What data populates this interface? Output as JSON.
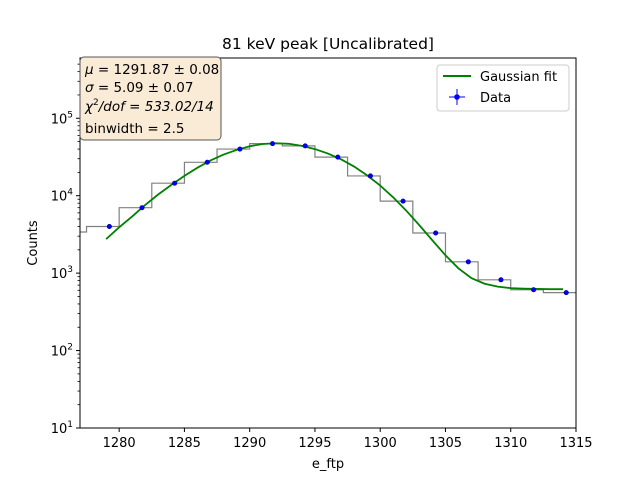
{
  "chart_data": {
    "type": "scatter",
    "title": "81 keV peak [Uncalibrated]",
    "xlabel": "e_ftp",
    "ylabel": "Counts",
    "xlim": [
      1277,
      1315
    ],
    "ylim": [
      10,
      600000
    ],
    "yscale": "log",
    "grid": false,
    "legend_position": "top-right",
    "x_ticks": [
      1280,
      1285,
      1290,
      1295,
      1300,
      1305,
      1310,
      1315
    ],
    "x_tick_labels": [
      "1280",
      "1285",
      "1290",
      "1295",
      "1300",
      "1305",
      "1310",
      "1315"
    ],
    "y_ticks": [
      10,
      100,
      1000,
      10000,
      100000
    ],
    "y_tick_labels": [
      {
        "base": "10",
        "exp": "1"
      },
      {
        "base": "10",
        "exp": "2"
      },
      {
        "base": "10",
        "exp": "3"
      },
      {
        "base": "10",
        "exp": "4"
      },
      {
        "base": "10",
        "exp": "5"
      }
    ],
    "histogram": {
      "color": "#808080",
      "edges": [
        1275.0,
        1277.5,
        1280.0,
        1282.5,
        1285.0,
        1287.5,
        1290.0,
        1292.5,
        1295.0,
        1297.5,
        1300.0,
        1302.5,
        1305.0,
        1307.5,
        1310.0,
        1312.5,
        1315.0
      ],
      "counts": [
        3400,
        4000,
        7000,
        14500,
        27000,
        40000,
        47000,
        44000,
        31500,
        18000,
        8500,
        3300,
        1400,
        820,
        610,
        560
      ]
    },
    "series": [
      {
        "name": "Gaussian fit",
        "type": "line",
        "color": "#008000",
        "x": [
          1279.0,
          1280.0,
          1281.0,
          1282.0,
          1283.0,
          1284.0,
          1285.0,
          1286.0,
          1287.0,
          1288.0,
          1289.0,
          1290.0,
          1291.0,
          1292.0,
          1293.0,
          1294.0,
          1295.0,
          1296.0,
          1297.0,
          1298.0,
          1299.0,
          1300.0,
          1301.0,
          1302.0,
          1303.0,
          1304.0,
          1305.0,
          1306.0,
          1307.0,
          1308.0,
          1309.0,
          1310.0,
          1311.0,
          1312.0,
          1313.0,
          1314.0
        ],
        "y": [
          2750,
          3900,
          5400,
          7600,
          10400,
          13800,
          18000,
          23000,
          28500,
          34000,
          39000,
          43500,
          46500,
          47600,
          46800,
          44000,
          40000,
          35000,
          29500,
          23800,
          18300,
          13500,
          9500,
          6400,
          4150,
          2650,
          1700,
          1150,
          860,
          730,
          670,
          640,
          630,
          625,
          620,
          620
        ]
      },
      {
        "name": "Data",
        "type": "scatter",
        "color": "#0000ff",
        "x": [
          1279.25,
          1281.75,
          1284.25,
          1286.75,
          1289.25,
          1291.75,
          1294.25,
          1296.75,
          1299.25,
          1301.75,
          1304.25,
          1306.75,
          1309.25,
          1311.75,
          1314.25
        ],
        "y": [
          4000,
          7000,
          14500,
          27000,
          40000,
          47000,
          44000,
          31500,
          18000,
          8500,
          3300,
          1400,
          820,
          610,
          560
        ]
      }
    ],
    "info_box": {
      "lines": [
        {
          "sym": "μ",
          "sup": "",
          "rest": " = 1291.87 ± 0.08"
        },
        {
          "sym": "σ",
          "sup": "",
          "rest": " = 5.09 ± 0.07"
        },
        {
          "sym": "χ",
          "sup": "2",
          "rest": "/dof = 533.02/14"
        },
        {
          "sym": "",
          "sup": "",
          "rest": "binwidth = 2.5"
        }
      ],
      "bg": "#faebd7",
      "border": "#555555"
    }
  }
}
